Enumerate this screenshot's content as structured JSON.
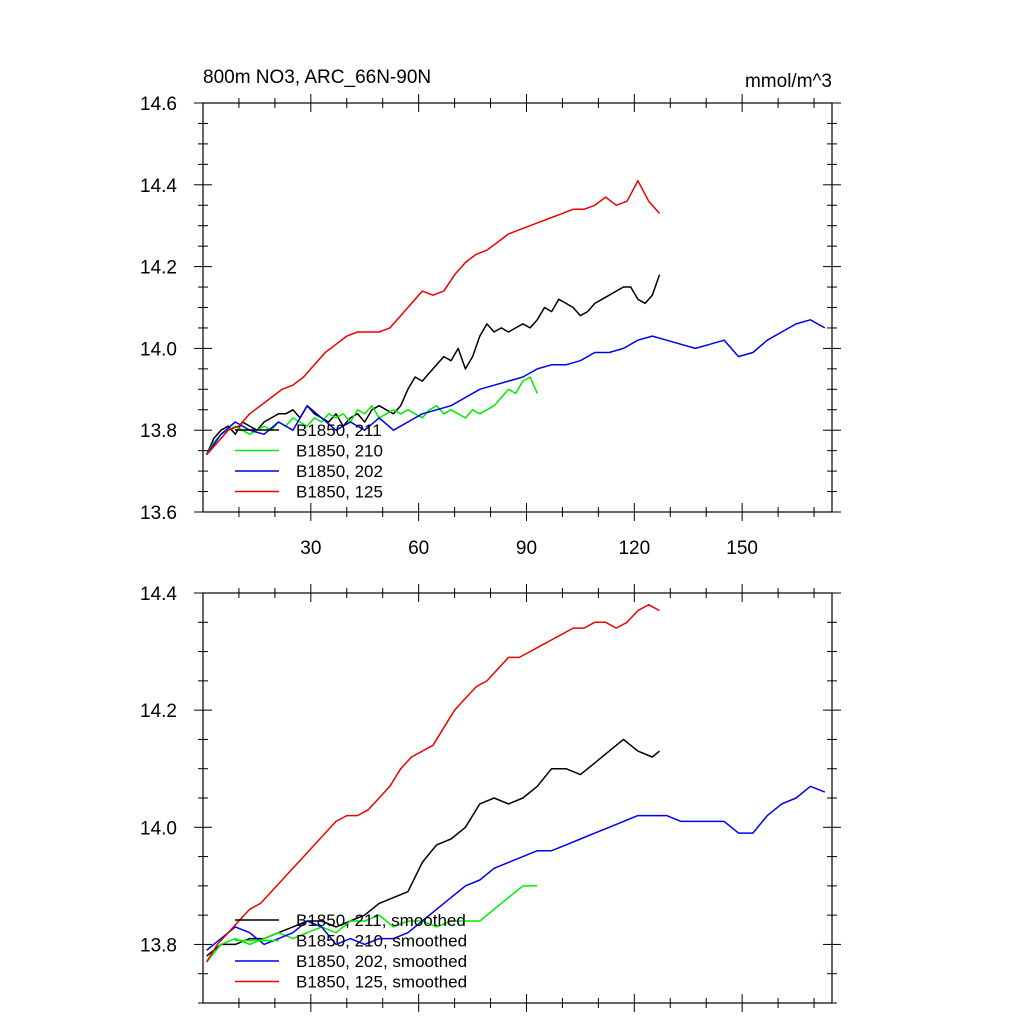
{
  "chart_data": [
    {
      "type": "line",
      "title": "800m NO3, ARC_66N-90N",
      "units": "mmol/m^3",
      "xlabel": "",
      "ylabel": "",
      "xlim": [
        0,
        175
      ],
      "ylim": [
        13.6,
        14.6
      ],
      "xticks": [
        30,
        60,
        90,
        120,
        150
      ],
      "yticks": [
        13.6,
        13.8,
        14.0,
        14.2,
        14.4,
        14.6
      ],
      "grid": false,
      "legend_position": "bottom-left",
      "series": [
        {
          "name": "B1850, 211",
          "color": "#000000",
          "x": [
            1,
            3,
            5,
            7,
            9,
            11,
            13,
            15,
            17,
            19,
            21,
            23,
            25,
            27,
            29,
            31,
            33,
            35,
            37,
            39,
            41,
            43,
            45,
            47,
            49,
            51,
            53,
            55,
            57,
            59,
            61,
            63,
            65,
            67,
            69,
            71,
            73,
            75,
            77,
            79,
            81,
            83,
            85,
            87,
            89,
            91,
            93,
            95,
            97,
            99,
            101,
            103,
            105,
            107,
            109,
            111,
            113,
            115,
            117,
            119,
            121,
            123,
            125,
            127
          ],
          "y": [
            13.74,
            13.78,
            13.8,
            13.81,
            13.79,
            13.82,
            13.81,
            13.8,
            13.82,
            13.83,
            13.84,
            13.84,
            13.85,
            13.83,
            13.86,
            13.84,
            13.83,
            13.82,
            13.84,
            13.81,
            13.83,
            13.84,
            13.82,
            13.85,
            13.86,
            13.85,
            13.84,
            13.86,
            13.9,
            13.93,
            13.92,
            13.94,
            13.96,
            13.98,
            13.97,
            14.0,
            13.95,
            13.98,
            14.03,
            14.06,
            14.04,
            14.05,
            14.04,
            14.05,
            14.06,
            14.05,
            14.07,
            14.1,
            14.09,
            14.12,
            14.11,
            14.1,
            14.08,
            14.09,
            14.11,
            14.12,
            14.13,
            14.14,
            14.15,
            14.15,
            14.12,
            14.11,
            14.13,
            14.18
          ]
        },
        {
          "name": "B1850, 210",
          "color": "#00ee00",
          "x": [
            1,
            3,
            5,
            7,
            9,
            11,
            13,
            15,
            17,
            19,
            21,
            23,
            25,
            27,
            29,
            31,
            33,
            35,
            37,
            39,
            41,
            43,
            45,
            47,
            49,
            51,
            53,
            55,
            57,
            59,
            61,
            63,
            65,
            67,
            69,
            71,
            73,
            75,
            77,
            79,
            81,
            83,
            85,
            87,
            89,
            91,
            93
          ],
          "y": [
            13.74,
            13.77,
            13.79,
            13.8,
            13.81,
            13.8,
            13.79,
            13.8,
            13.81,
            13.8,
            13.82,
            13.81,
            13.83,
            13.82,
            13.81,
            13.83,
            13.82,
            13.84,
            13.83,
            13.84,
            13.82,
            13.85,
            13.84,
            13.86,
            13.83,
            13.84,
            13.85,
            13.84,
            13.85,
            13.84,
            13.83,
            13.85,
            13.86,
            13.84,
            13.85,
            13.84,
            13.83,
            13.85,
            13.84,
            13.85,
            13.86,
            13.88,
            13.9,
            13.89,
            13.92,
            13.93,
            13.89
          ]
        },
        {
          "name": "B1850, 202",
          "color": "#0000ee",
          "x": [
            1,
            5,
            9,
            13,
            17,
            21,
            25,
            29,
            33,
            37,
            41,
            45,
            49,
            53,
            57,
            61,
            65,
            69,
            73,
            77,
            81,
            85,
            89,
            93,
            97,
            101,
            105,
            109,
            113,
            117,
            121,
            125,
            129,
            133,
            137,
            141,
            145,
            149,
            153,
            157,
            161,
            165,
            169,
            173
          ],
          "y": [
            13.74,
            13.79,
            13.82,
            13.8,
            13.79,
            13.82,
            13.8,
            13.86,
            13.83,
            13.8,
            13.82,
            13.8,
            13.83,
            13.8,
            13.82,
            13.84,
            13.85,
            13.86,
            13.88,
            13.9,
            13.91,
            13.92,
            13.93,
            13.95,
            13.96,
            13.96,
            13.97,
            13.99,
            13.99,
            14.0,
            14.02,
            14.03,
            14.02,
            14.01,
            14.0,
            14.01,
            14.02,
            13.98,
            13.99,
            14.02,
            14.04,
            14.06,
            14.07,
            14.05
          ]
        },
        {
          "name": "B1850, 125",
          "color": "#ee0000",
          "x": [
            1,
            4,
            7,
            10,
            13,
            16,
            19,
            22,
            25,
            28,
            31,
            34,
            37,
            40,
            43,
            46,
            49,
            52,
            55,
            58,
            61,
            64,
            67,
            70,
            73,
            76,
            79,
            82,
            85,
            88,
            91,
            94,
            97,
            100,
            103,
            106,
            109,
            112,
            115,
            118,
            121,
            124,
            127
          ],
          "y": [
            13.74,
            13.77,
            13.8,
            13.81,
            13.84,
            13.86,
            13.88,
            13.9,
            13.91,
            13.93,
            13.96,
            13.99,
            14.01,
            14.03,
            14.04,
            14.04,
            14.04,
            14.05,
            14.08,
            14.11,
            14.14,
            14.13,
            14.14,
            14.18,
            14.21,
            14.23,
            14.24,
            14.26,
            14.28,
            14.29,
            14.3,
            14.31,
            14.32,
            14.33,
            14.34,
            14.34,
            14.35,
            14.37,
            14.35,
            14.36,
            14.41,
            14.36,
            14.33
          ]
        }
      ]
    },
    {
      "type": "line",
      "xlim": [
        0,
        175
      ],
      "ylim": [
        13.7,
        14.4
      ],
      "yticks": [
        13.8,
        14.0,
        14.2,
        14.4
      ],
      "grid": false,
      "legend_position": "bottom-left",
      "series": [
        {
          "name": "B1850, 211, smoothed",
          "color": "#000000",
          "x": [
            1,
            5,
            9,
            13,
            17,
            21,
            25,
            29,
            33,
            37,
            41,
            45,
            49,
            53,
            57,
            61,
            65,
            69,
            73,
            77,
            81,
            85,
            89,
            93,
            97,
            101,
            105,
            109,
            113,
            117,
            121,
            125,
            127
          ],
          "y": [
            13.78,
            13.8,
            13.8,
            13.81,
            13.81,
            13.82,
            13.83,
            13.84,
            13.84,
            13.83,
            13.84,
            13.85,
            13.87,
            13.88,
            13.89,
            13.94,
            13.97,
            13.98,
            14.0,
            14.04,
            14.05,
            14.04,
            14.05,
            14.07,
            14.1,
            14.1,
            14.09,
            14.11,
            14.13,
            14.15,
            14.13,
            14.12,
            14.13
          ]
        },
        {
          "name": "B1850, 210, smoothed",
          "color": "#00ee00",
          "x": [
            1,
            5,
            9,
            13,
            17,
            21,
            25,
            29,
            33,
            37,
            41,
            45,
            49,
            53,
            57,
            61,
            65,
            69,
            73,
            77,
            81,
            85,
            89,
            93
          ],
          "y": [
            13.77,
            13.8,
            13.81,
            13.8,
            13.81,
            13.82,
            13.81,
            13.82,
            13.83,
            13.82,
            13.84,
            13.84,
            13.85,
            13.83,
            13.84,
            13.84,
            13.83,
            13.84,
            13.84,
            13.84,
            13.86,
            13.88,
            13.9,
            13.9
          ]
        },
        {
          "name": "B1850, 202, smoothed",
          "color": "#0000ee",
          "x": [
            1,
            5,
            9,
            13,
            17,
            21,
            25,
            29,
            33,
            37,
            41,
            45,
            49,
            53,
            57,
            61,
            65,
            69,
            73,
            77,
            81,
            85,
            89,
            93,
            97,
            101,
            105,
            109,
            113,
            117,
            121,
            125,
            129,
            133,
            137,
            141,
            145,
            149,
            153,
            157,
            161,
            165,
            169,
            173
          ],
          "y": [
            13.79,
            13.81,
            13.83,
            13.82,
            13.8,
            13.81,
            13.82,
            13.84,
            13.83,
            13.8,
            13.81,
            13.8,
            13.81,
            13.81,
            13.82,
            13.84,
            13.86,
            13.88,
            13.9,
            13.91,
            13.93,
            13.94,
            13.95,
            13.96,
            13.96,
            13.97,
            13.98,
            13.99,
            14.0,
            14.01,
            14.02,
            14.02,
            14.02,
            14.01,
            14.01,
            14.01,
            14.01,
            13.99,
            13.99,
            14.02,
            14.04,
            14.05,
            14.07,
            14.06
          ]
        },
        {
          "name": "B1850, 125, smoothed",
          "color": "#ee0000",
          "x": [
            1,
            4,
            7,
            10,
            13,
            16,
            19,
            22,
            25,
            28,
            31,
            34,
            37,
            40,
            43,
            46,
            49,
            52,
            55,
            58,
            61,
            64,
            67,
            70,
            73,
            76,
            79,
            82,
            85,
            88,
            91,
            94,
            97,
            100,
            103,
            106,
            109,
            112,
            115,
            118,
            121,
            124,
            127
          ],
          "y": [
            13.77,
            13.8,
            13.82,
            13.84,
            13.86,
            13.87,
            13.89,
            13.91,
            13.93,
            13.95,
            13.97,
            13.99,
            14.01,
            14.02,
            14.02,
            14.03,
            14.05,
            14.07,
            14.1,
            14.12,
            14.13,
            14.14,
            14.17,
            14.2,
            14.22,
            14.24,
            14.25,
            14.27,
            14.29,
            14.29,
            14.3,
            14.31,
            14.32,
            14.33,
            14.34,
            14.34,
            14.35,
            14.35,
            14.34,
            14.35,
            14.37,
            14.38,
            14.37
          ]
        }
      ]
    }
  ]
}
